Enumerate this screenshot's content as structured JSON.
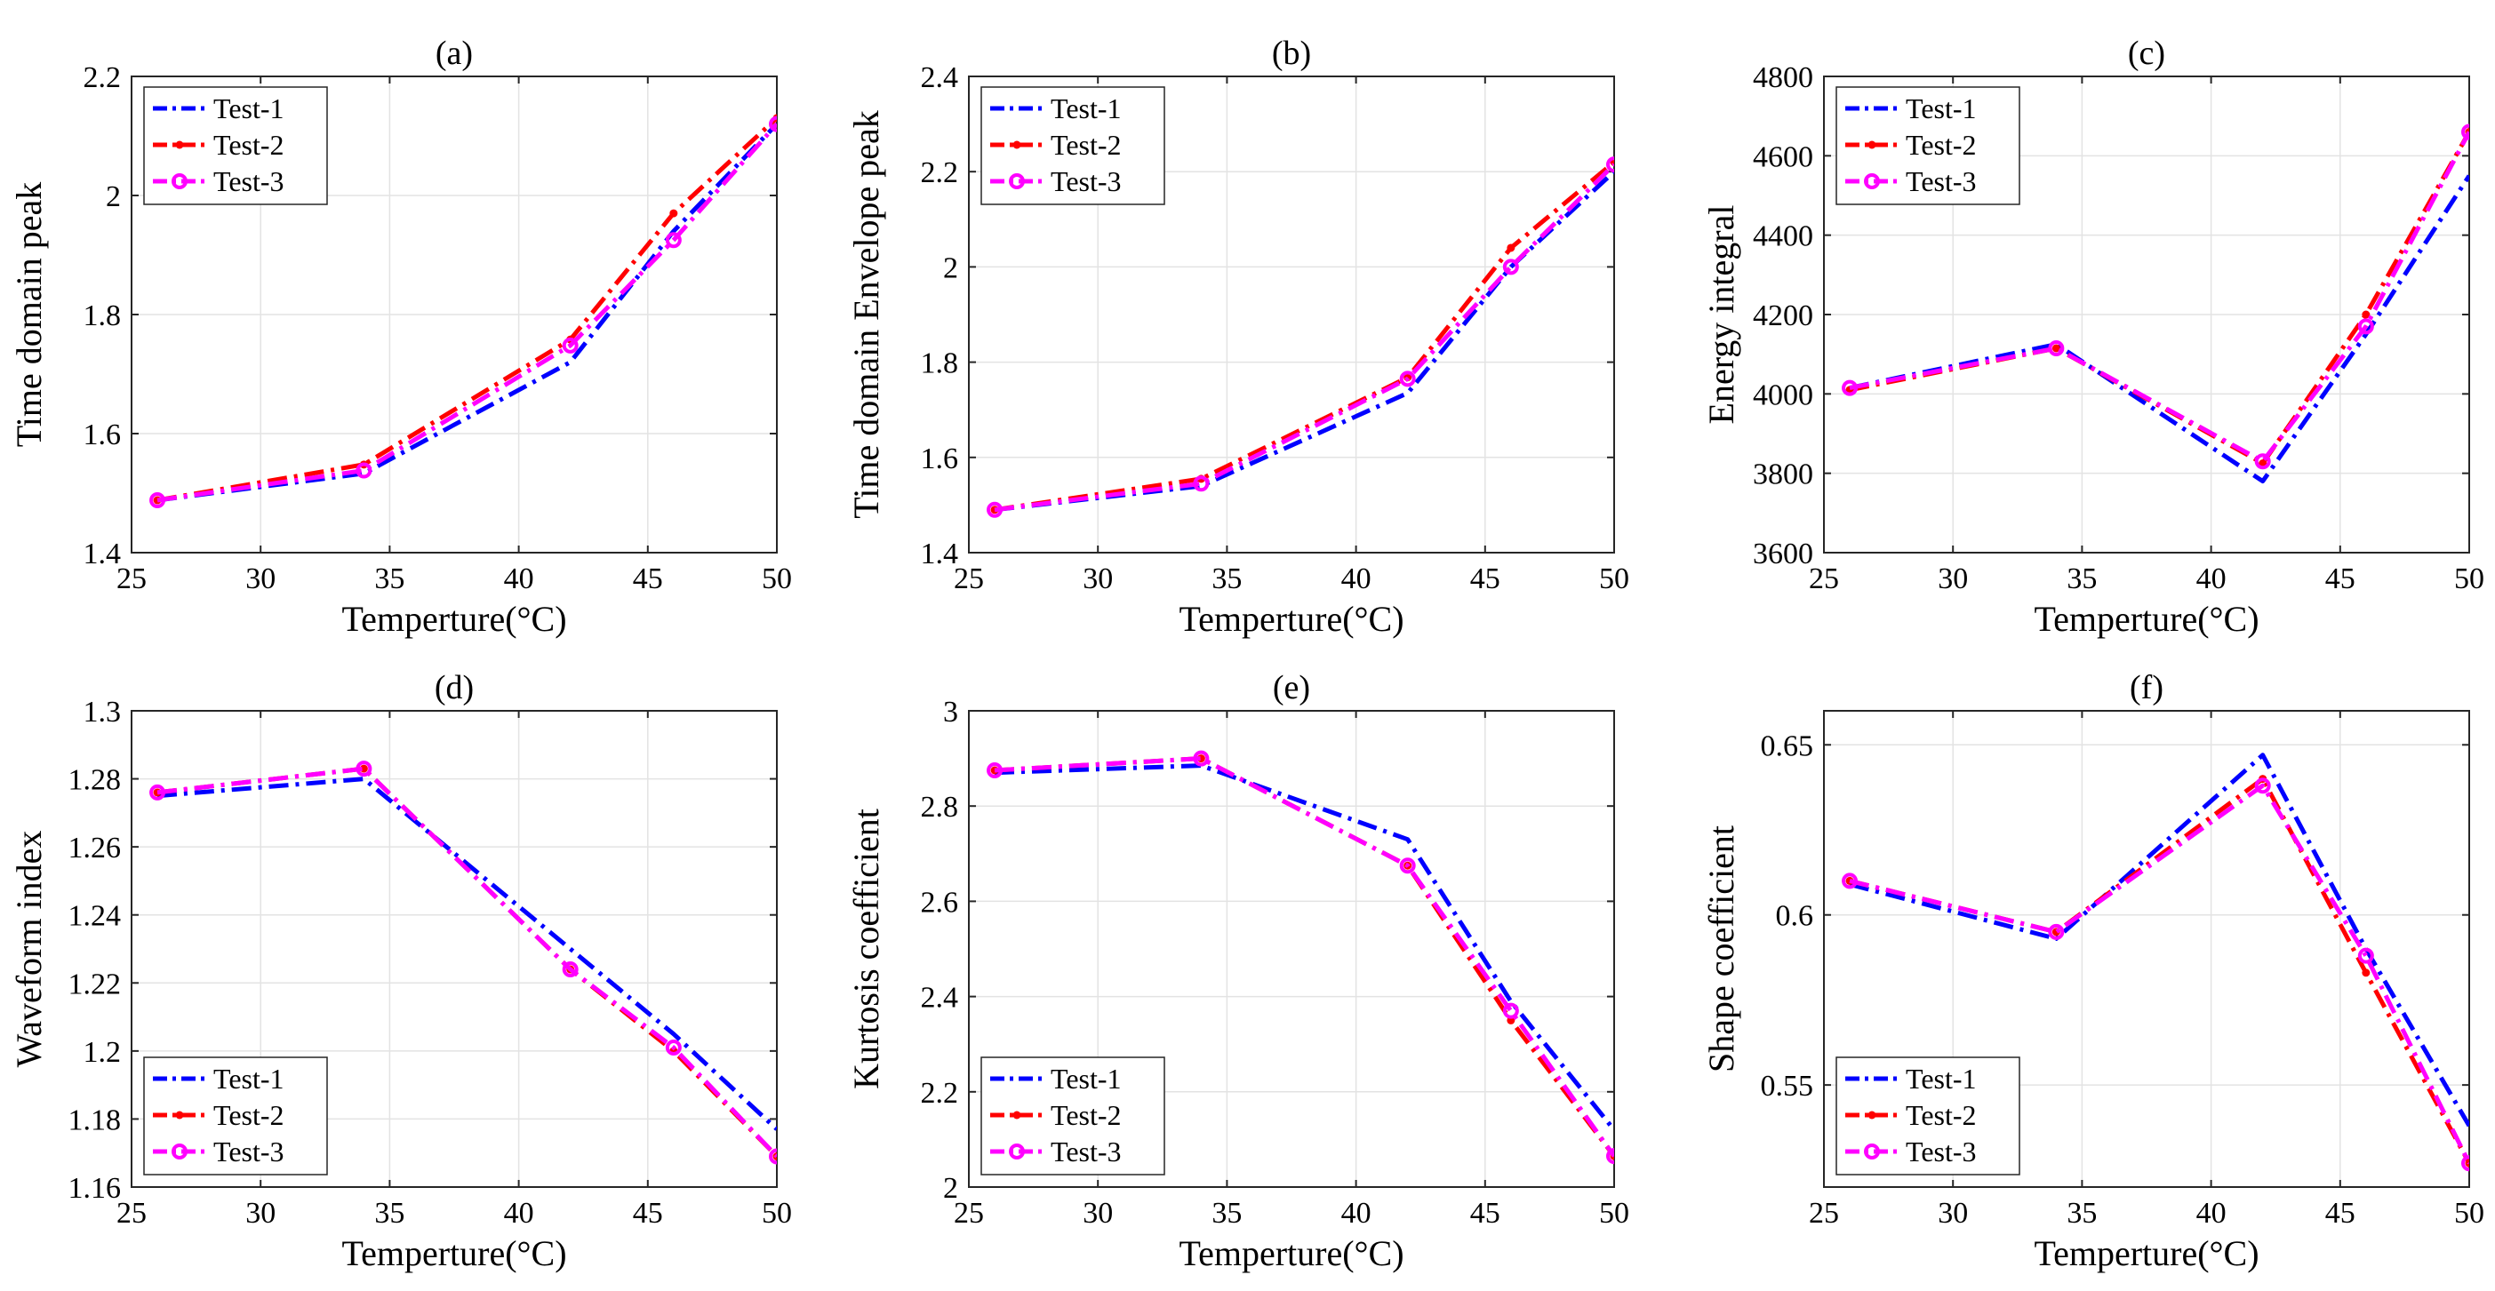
{
  "chart_data": [
    {
      "type": "line",
      "title": "(a)",
      "xlabel": "Temperture(°C)",
      "ylabel": "Time domain peak",
      "xlim": [
        25,
        50
      ],
      "ylim": [
        1.4,
        2.2
      ],
      "xticks": [
        25,
        30,
        35,
        40,
        45,
        50
      ],
      "yticks": [
        1.4,
        1.6,
        1.8,
        2,
        2.2
      ],
      "x": [
        26,
        34,
        42,
        46,
        50
      ],
      "legend_position": "top-left",
      "series": [
        {
          "name": "Test-1",
          "color": "#0000ff",
          "marker": "none",
          "values": [
            1.488,
            1.533,
            1.72,
            1.94,
            2.12
          ]
        },
        {
          "name": "Test-2",
          "color": "#ff0000",
          "marker": "dot",
          "values": [
            1.488,
            1.548,
            1.758,
            1.97,
            2.13
          ]
        },
        {
          "name": "Test-3",
          "color": "#ff00ff",
          "marker": "circle",
          "values": [
            1.488,
            1.538,
            1.748,
            1.925,
            2.12
          ]
        }
      ]
    },
    {
      "type": "line",
      "title": "(b)",
      "xlabel": "Temperture(°C)",
      "ylabel": "Time domain Envelope peak",
      "xlim": [
        25,
        50
      ],
      "ylim": [
        1.4,
        2.4
      ],
      "xticks": [
        25,
        30,
        35,
        40,
        45,
        50
      ],
      "yticks": [
        1.4,
        1.6,
        1.8,
        2,
        2.2,
        2.4
      ],
      "x": [
        26,
        34,
        42,
        46,
        50
      ],
      "legend_position": "top-left",
      "series": [
        {
          "name": "Test-1",
          "color": "#0000ff",
          "marker": "none",
          "values": [
            1.49,
            1.54,
            1.735,
            2.0,
            2.2
          ]
        },
        {
          "name": "Test-2",
          "color": "#ff0000",
          "marker": "dot",
          "values": [
            1.49,
            1.555,
            1.768,
            2.04,
            2.22
          ]
        },
        {
          "name": "Test-3",
          "color": "#ff00ff",
          "marker": "circle",
          "values": [
            1.49,
            1.545,
            1.765,
            2.0,
            2.215
          ]
        }
      ]
    },
    {
      "type": "line",
      "title": "(c)",
      "xlabel": "Temperture(°C)",
      "ylabel": "Energy integral",
      "xlim": [
        25,
        50
      ],
      "ylim": [
        3600,
        4800
      ],
      "xticks": [
        25,
        30,
        35,
        40,
        45,
        50
      ],
      "yticks": [
        3600,
        3800,
        4000,
        4200,
        4400,
        4600,
        4800
      ],
      "x": [
        26,
        34,
        42,
        46,
        50
      ],
      "legend_position": "top-left",
      "series": [
        {
          "name": "Test-1",
          "color": "#0000ff",
          "marker": "none",
          "values": [
            4015,
            4125,
            3780,
            4150,
            4550
          ]
        },
        {
          "name": "Test-2",
          "color": "#ff0000",
          "marker": "dot",
          "values": [
            4010,
            4115,
            3825,
            4200,
            4660
          ]
        },
        {
          "name": "Test-3",
          "color": "#ff00ff",
          "marker": "circle",
          "values": [
            4015,
            4115,
            3830,
            4170,
            4660
          ]
        }
      ]
    },
    {
      "type": "line",
      "title": "(d)",
      "xlabel": "Temperture(°C)",
      "ylabel": "Waveform index",
      "xlim": [
        25,
        50
      ],
      "ylim": [
        1.16,
        1.3
      ],
      "xticks": [
        25,
        30,
        35,
        40,
        45,
        50
      ],
      "yticks": [
        1.16,
        1.18,
        1.2,
        1.22,
        1.24,
        1.26,
        1.28,
        1.3
      ],
      "x": [
        26,
        34,
        42,
        46,
        50
      ],
      "legend_position": "bottom-left",
      "series": [
        {
          "name": "Test-1",
          "color": "#0000ff",
          "marker": "none",
          "values": [
            1.275,
            1.28,
            1.23,
            1.205,
            1.177
          ]
        },
        {
          "name": "Test-2",
          "color": "#ff0000",
          "marker": "dot",
          "values": [
            1.276,
            1.283,
            1.224,
            1.2,
            1.169
          ]
        },
        {
          "name": "Test-3",
          "color": "#ff00ff",
          "marker": "circle",
          "values": [
            1.276,
            1.283,
            1.224,
            1.201,
            1.169
          ]
        }
      ]
    },
    {
      "type": "line",
      "title": "(e)",
      "xlabel": "Temperture(°C)",
      "ylabel": "Kurtosis coefficient",
      "xlim": [
        25,
        50
      ],
      "ylim": [
        2,
        3
      ],
      "xticks": [
        25,
        30,
        35,
        40,
        45,
        50
      ],
      "yticks": [
        2,
        2.2,
        2.4,
        2.6,
        2.8,
        3
      ],
      "x": [
        26,
        34,
        42,
        46,
        50
      ],
      "legend_position": "bottom-left",
      "series": [
        {
          "name": "Test-1",
          "color": "#0000ff",
          "marker": "none",
          "values": [
            2.87,
            2.885,
            2.73,
            2.39,
            2.12
          ]
        },
        {
          "name": "Test-2",
          "color": "#ff0000",
          "marker": "dot",
          "values": [
            2.875,
            2.9,
            2.675,
            2.35,
            2.065
          ]
        },
        {
          "name": "Test-3",
          "color": "#ff00ff",
          "marker": "circle",
          "values": [
            2.875,
            2.9,
            2.675,
            2.37,
            2.065
          ]
        }
      ]
    },
    {
      "type": "line",
      "title": "(f)",
      "xlabel": "Temperture(°C)",
      "ylabel": "Shape coefficient",
      "xlim": [
        25,
        50
      ],
      "ylim": [
        0.52,
        0.66
      ],
      "xticks": [
        25,
        30,
        35,
        40,
        45,
        50
      ],
      "yticks": [
        0.55,
        0.6,
        0.65
      ],
      "x": [
        26,
        34,
        42,
        46,
        50
      ],
      "legend_position": "bottom-left",
      "series": [
        {
          "name": "Test-1",
          "color": "#0000ff",
          "marker": "none",
          "values": [
            0.609,
            0.593,
            0.647,
            0.59,
            0.538
          ]
        },
        {
          "name": "Test-2",
          "color": "#ff0000",
          "marker": "dot",
          "values": [
            0.61,
            0.595,
            0.64,
            0.583,
            0.527
          ]
        },
        {
          "name": "Test-3",
          "color": "#ff00ff",
          "marker": "circle",
          "values": [
            0.61,
            0.595,
            0.638,
            0.588,
            0.527
          ]
        }
      ]
    }
  ]
}
